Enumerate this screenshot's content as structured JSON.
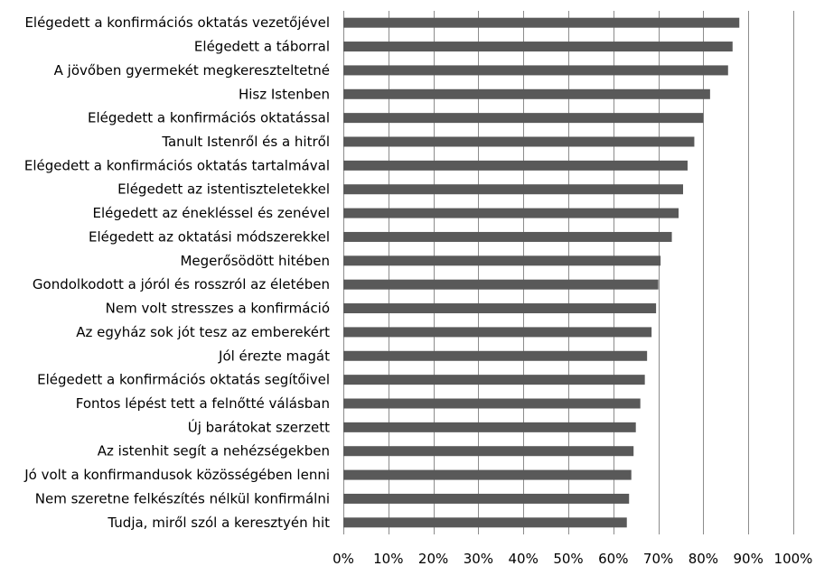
{
  "chart_data": {
    "type": "bar",
    "orientation": "horizontal",
    "categories": [
      "Elégedett a konfirmációs oktatás vezetőjével",
      "Elégedett a táborral",
      "A jövőben gyermekét megkereszteltetné",
      "Hisz Istenben",
      "Elégedett a konfirmációs oktatással",
      "Tanult Istenről és a hitről",
      "Elégedett a konfirmációs oktatás tartalmával",
      "Elégedett az istentiszteletekkel",
      "Elégedett az énekléssel és zenével",
      "Elégedett az oktatási módszerekkel",
      "Megerősödött hitében",
      "Gondolkodott a jóról és rosszról az életében",
      "Nem volt stresszes a konfirmáció",
      "Az egyház sok jót tesz az emberekért",
      "Jól érezte magát",
      "Elégedett a konfirmációs oktatás segítőivel",
      "Fontos lépést tett a felnőtté válásban",
      "Új barátokat szerzett",
      "Az istenhit segít a nehézségekben",
      "Jó volt a konfirmandusok közösségében lenni",
      "Nem szeretne felkészítés nélkül konfirmálni",
      "Tudja, miről szól a keresztyén hit"
    ],
    "values": [
      88,
      86.5,
      85.5,
      81.5,
      80,
      78,
      76.5,
      75.5,
      74.5,
      73,
      70.5,
      70,
      69.5,
      68.5,
      67.5,
      67,
      66,
      65,
      64.5,
      64,
      63.5,
      63
    ],
    "xlim": [
      0,
      100
    ],
    "ticks": [
      "0%",
      "10%",
      "20%",
      "30%",
      "40%",
      "50%",
      "60%",
      "70%",
      "80%",
      "90%",
      "100%"
    ],
    "tick_values": [
      0,
      10,
      20,
      30,
      40,
      50,
      60,
      70,
      80,
      90,
      100
    ],
    "bar_color": "#595959",
    "grid": true,
    "title": "",
    "xlabel": "",
    "ylabel": ""
  }
}
